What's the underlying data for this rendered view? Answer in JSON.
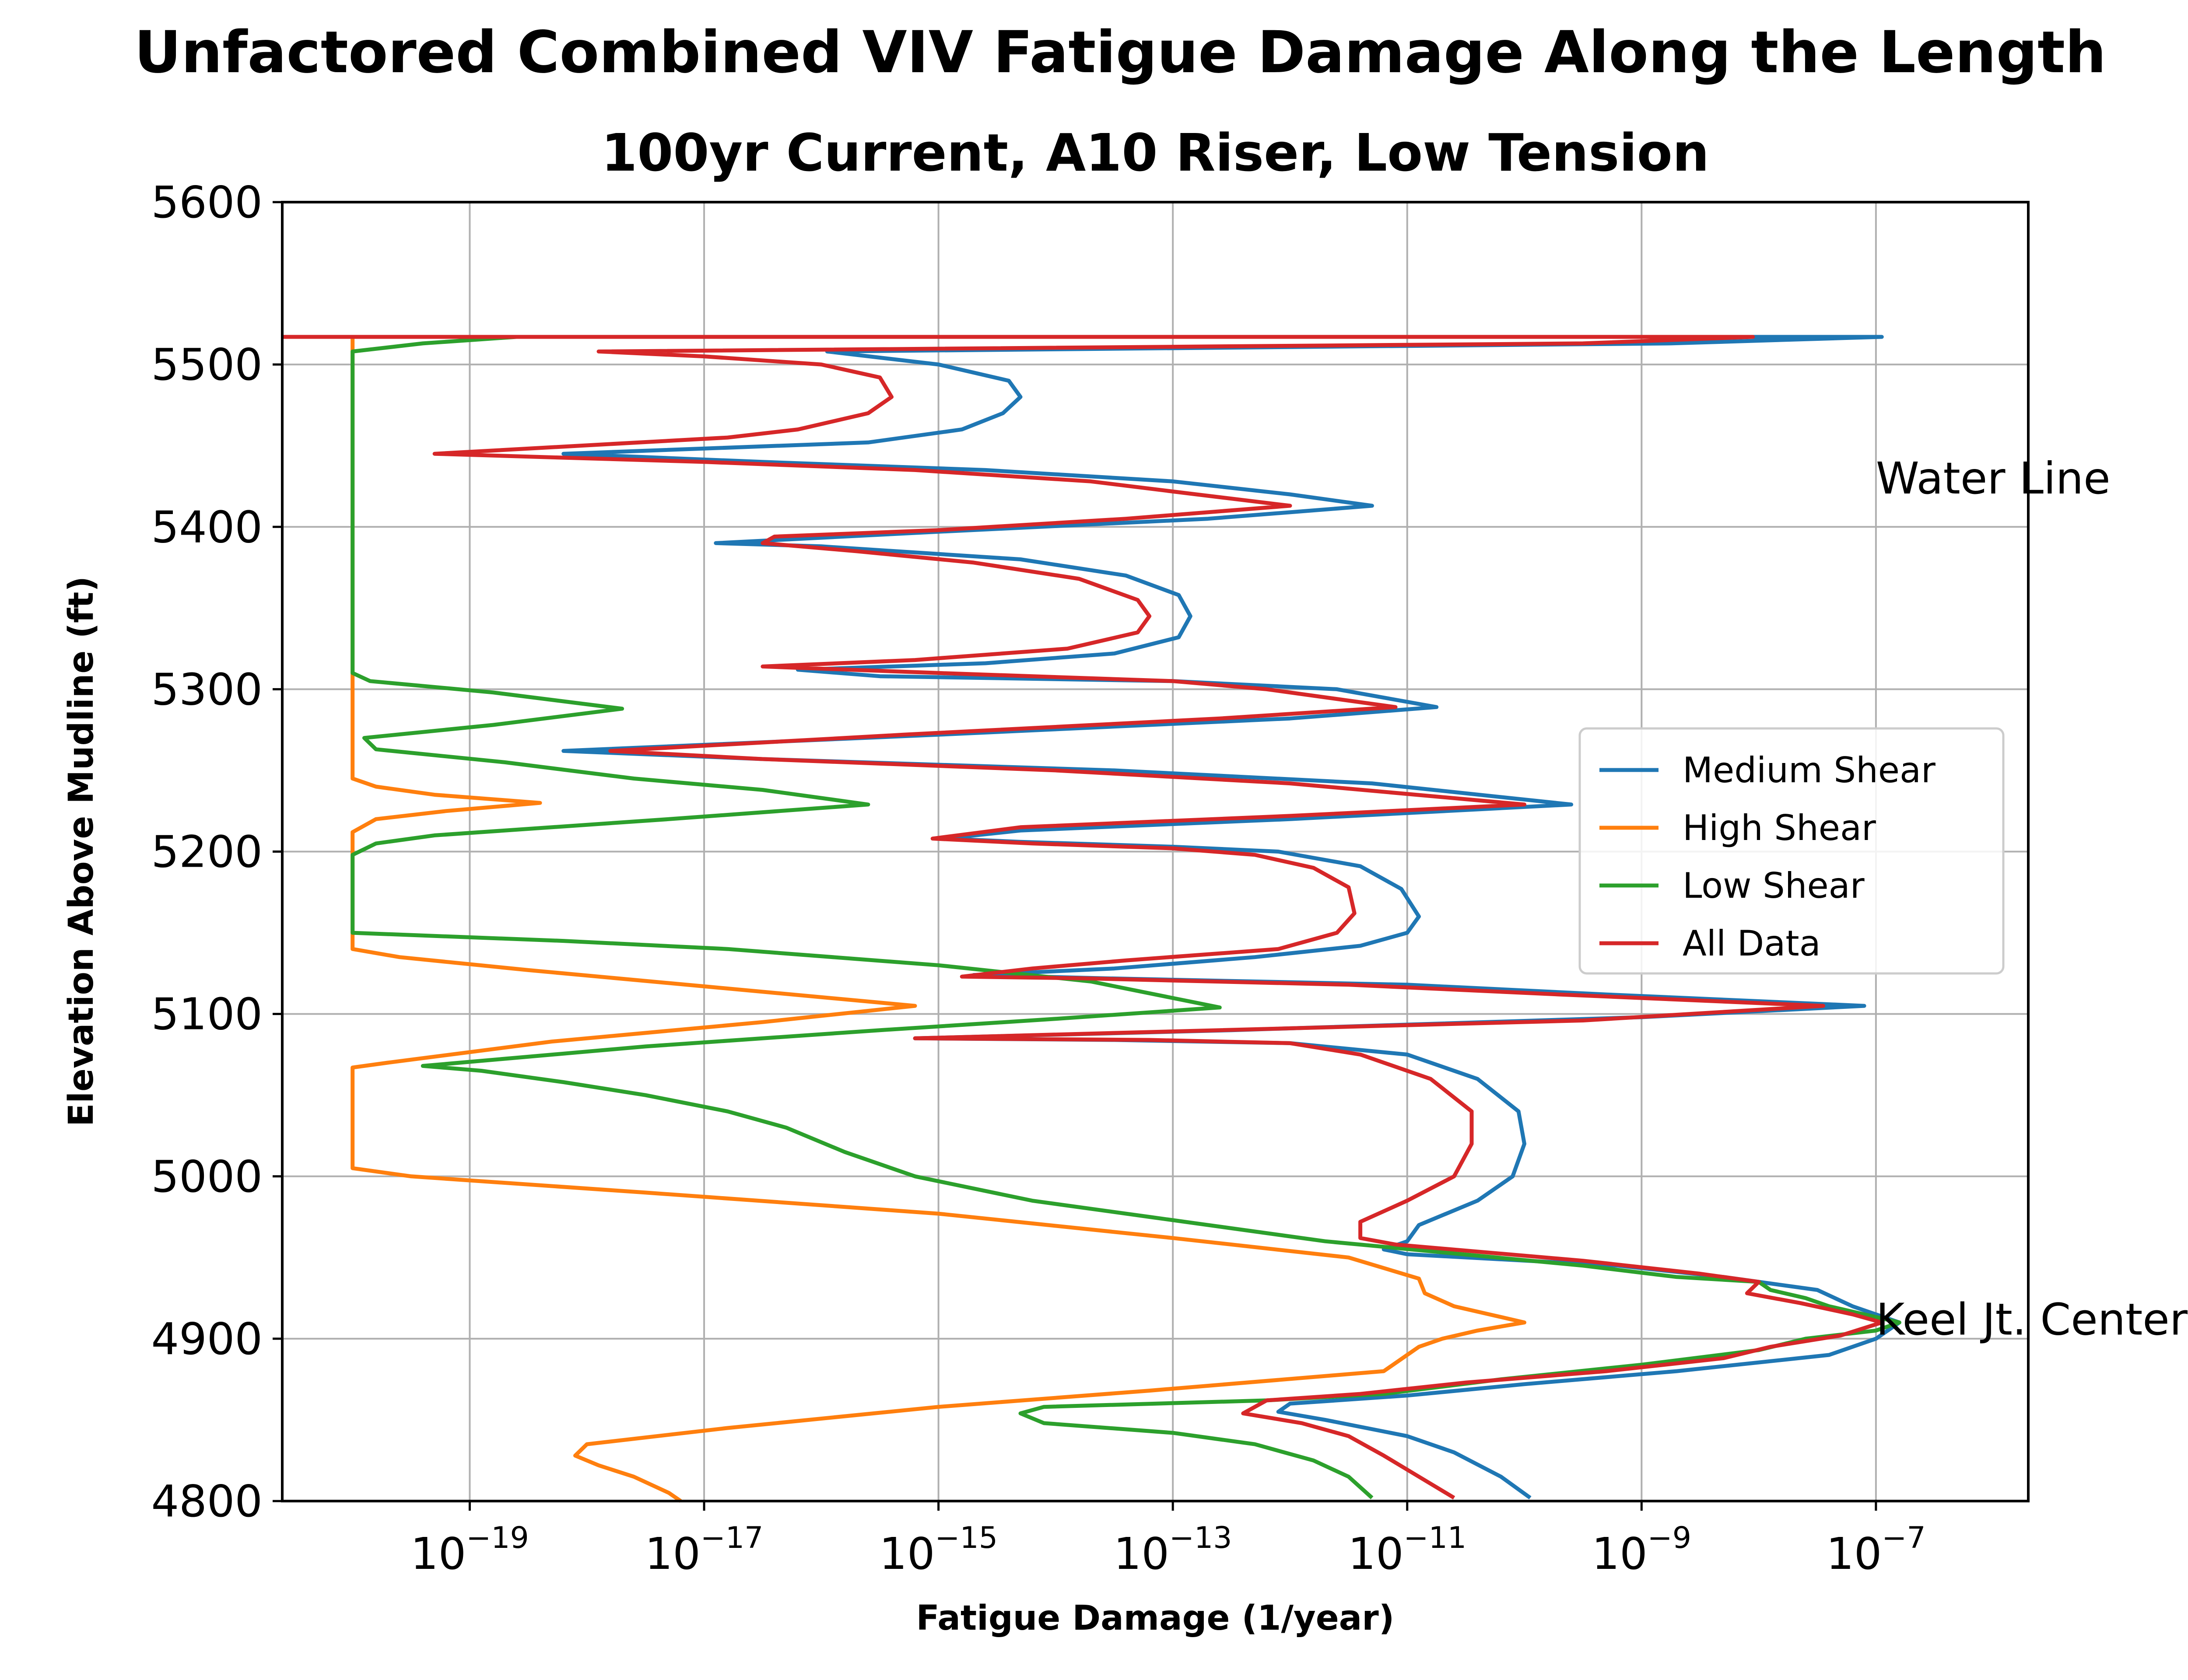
{
  "chart_data": {
    "type": "line",
    "title": "Unfactored Combined VIV Fatigue Damage Along the Length",
    "subtitle": "100yr Current, A10 Riser, Low Tension",
    "xlabel": "Fatigue Damage (1/year)",
    "ylabel": "Elevation Above Mudline (ft)",
    "x_scale": "log",
    "xlim_exp": [
      -20.6,
      -5.7
    ],
    "xlim": [
      2.5e-21,
      2e-06
    ],
    "ylim": [
      4800,
      5600
    ],
    "x_ticks": [
      {
        "exp": -19,
        "base": "10",
        "power": "−19"
      },
      {
        "exp": -17,
        "base": "10",
        "power": "−17"
      },
      {
        "exp": -15,
        "base": "10",
        "power": "−15"
      },
      {
        "exp": -13,
        "base": "10",
        "power": "−13"
      },
      {
        "exp": -11,
        "base": "10",
        "power": "−11"
      },
      {
        "exp": -9,
        "base": "10",
        "power": "−9"
      },
      {
        "exp": -7,
        "base": "10",
        "power": "−7"
      }
    ],
    "y_ticks": [
      "4800",
      "4900",
      "5000",
      "5100",
      "5200",
      "5300",
      "5400",
      "5500",
      "5600"
    ],
    "grid": true,
    "legend_position": "center-right",
    "annotations": [
      {
        "text": "Water Line",
        "x_exp": -7.0,
        "y": 5430
      },
      {
        "text": "Keel Jt. Center",
        "x_exp": -7.0,
        "y": 4912
      }
    ],
    "series": [
      {
        "name": "Medium Shear",
        "color": "#1f77b4",
        "points": [
          [
            -20.6,
            5517
          ],
          [
            -6.95,
            5517
          ],
          [
            -8.75,
            5513
          ],
          [
            -15.95,
            5508
          ],
          [
            -15.0,
            5500
          ],
          [
            -14.4,
            5490
          ],
          [
            -14.3,
            5480
          ],
          [
            -14.45,
            5470
          ],
          [
            -14.8,
            5460
          ],
          [
            -15.6,
            5452
          ],
          [
            -18.2,
            5445
          ],
          [
            -16.5,
            5440
          ],
          [
            -14.6,
            5435
          ],
          [
            -13.0,
            5428
          ],
          [
            -12.0,
            5420
          ],
          [
            -11.3,
            5413
          ],
          [
            -12.7,
            5405
          ],
          [
            -15.0,
            5397
          ],
          [
            -16.9,
            5390
          ],
          [
            -16.0,
            5388
          ],
          [
            -14.3,
            5380
          ],
          [
            -13.4,
            5370
          ],
          [
            -12.95,
            5358
          ],
          [
            -12.85,
            5345
          ],
          [
            -12.95,
            5332
          ],
          [
            -13.5,
            5322
          ],
          [
            -14.6,
            5316
          ],
          [
            -16.2,
            5312
          ],
          [
            -15.5,
            5308
          ],
          [
            -13.0,
            5305
          ],
          [
            -11.6,
            5300
          ],
          [
            -10.75,
            5289
          ],
          [
            -12.0,
            5282
          ],
          [
            -15.0,
            5272
          ],
          [
            -18.2,
            5262
          ],
          [
            -16.5,
            5257
          ],
          [
            -13.5,
            5250
          ],
          [
            -11.3,
            5242
          ],
          [
            -9.6,
            5229
          ],
          [
            -12.0,
            5220
          ],
          [
            -14.3,
            5213
          ],
          [
            -14.95,
            5208
          ],
          [
            -14.3,
            5206
          ],
          [
            -13.0,
            5203
          ],
          [
            -12.1,
            5200
          ],
          [
            -11.4,
            5191
          ],
          [
            -11.05,
            5177
          ],
          [
            -10.9,
            5160
          ],
          [
            -11.0,
            5150
          ],
          [
            -11.4,
            5142
          ],
          [
            -12.3,
            5135
          ],
          [
            -13.5,
            5128
          ],
          [
            -14.7,
            5124
          ],
          [
            -13.6,
            5122
          ],
          [
            -11.0,
            5118
          ],
          [
            -9.3,
            5112
          ],
          [
            -7.1,
            5105
          ],
          [
            -9.0,
            5098
          ],
          [
            -12.5,
            5090
          ],
          [
            -15.2,
            5085
          ],
          [
            -13.5,
            5084
          ],
          [
            -12.0,
            5082
          ],
          [
            -11.0,
            5075
          ],
          [
            -10.4,
            5060
          ],
          [
            -10.05,
            5040
          ],
          [
            -10.0,
            5020
          ],
          [
            -10.1,
            5000
          ],
          [
            -10.4,
            4985
          ],
          [
            -10.9,
            4970
          ],
          [
            -11.0,
            4960
          ],
          [
            -11.2,
            4955
          ],
          [
            -11.0,
            4952
          ],
          [
            -9.2,
            4945
          ],
          [
            -8.3,
            4938
          ],
          [
            -7.5,
            4930
          ],
          [
            -7.2,
            4920
          ],
          [
            -6.8,
            4910
          ],
          [
            -7.0,
            4900
          ],
          [
            -7.4,
            4890
          ],
          [
            -8.7,
            4880
          ],
          [
            -10.0,
            4872
          ],
          [
            -11.0,
            4865
          ],
          [
            -12.0,
            4860
          ],
          [
            -12.1,
            4855
          ],
          [
            -11.7,
            4850
          ],
          [
            -11.0,
            4840
          ],
          [
            -10.6,
            4830
          ],
          [
            -10.2,
            4815
          ],
          [
            -9.95,
            4802
          ]
        ]
      },
      {
        "name": "High Shear",
        "color": "#ff7f0e",
        "points": [
          [
            -20.6,
            5517
          ],
          [
            -20.0,
            5517
          ],
          [
            -20.0,
            5510
          ],
          [
            -20.0,
            5400
          ],
          [
            -20.0,
            5245
          ],
          [
            -19.8,
            5240
          ],
          [
            -19.3,
            5235
          ],
          [
            -18.4,
            5230
          ],
          [
            -19.2,
            5225
          ],
          [
            -19.8,
            5220
          ],
          [
            -20.0,
            5212
          ],
          [
            -20.0,
            5140
          ],
          [
            -19.6,
            5135
          ],
          [
            -18.5,
            5127
          ],
          [
            -17.0,
            5117
          ],
          [
            -15.2,
            5105
          ],
          [
            -16.5,
            5095
          ],
          [
            -18.3,
            5083
          ],
          [
            -19.7,
            5070
          ],
          [
            -20.0,
            5067
          ],
          [
            -20.0,
            5005
          ],
          [
            -19.5,
            5000
          ],
          [
            -17.5,
            4990
          ],
          [
            -15.0,
            4977
          ],
          [
            -13.0,
            4962
          ],
          [
            -11.5,
            4950
          ],
          [
            -10.9,
            4937
          ],
          [
            -10.85,
            4928
          ],
          [
            -10.6,
            4920
          ],
          [
            -10.3,
            4915
          ],
          [
            -10.0,
            4910
          ],
          [
            -10.4,
            4905
          ],
          [
            -10.7,
            4900
          ],
          [
            -10.9,
            4895
          ],
          [
            -11.0,
            4890
          ],
          [
            -11.2,
            4880
          ],
          [
            -13.2,
            4868
          ],
          [
            -15.0,
            4858
          ],
          [
            -16.8,
            4845
          ],
          [
            -18.0,
            4835
          ],
          [
            -18.1,
            4828
          ],
          [
            -17.9,
            4822
          ],
          [
            -17.6,
            4815
          ],
          [
            -17.3,
            4805
          ],
          [
            -17.2,
            4800
          ]
        ]
      },
      {
        "name": "Low Shear",
        "color": "#2ca02c",
        "points": [
          [
            -20.6,
            5517
          ],
          [
            -18.6,
            5517
          ],
          [
            -19.4,
            5513
          ],
          [
            -20.0,
            5508
          ],
          [
            -20.0,
            5400
          ],
          [
            -20.0,
            5310
          ],
          [
            -19.85,
            5305
          ],
          [
            -18.8,
            5298
          ],
          [
            -17.7,
            5288
          ],
          [
            -18.8,
            5278
          ],
          [
            -19.9,
            5270
          ],
          [
            -19.8,
            5263
          ],
          [
            -18.7,
            5255
          ],
          [
            -17.6,
            5245
          ],
          [
            -16.5,
            5238
          ],
          [
            -15.6,
            5229
          ],
          [
            -17.3,
            5220
          ],
          [
            -19.3,
            5210
          ],
          [
            -19.8,
            5205
          ],
          [
            -20.0,
            5198
          ],
          [
            -20.0,
            5150
          ],
          [
            -18.2,
            5145
          ],
          [
            -16.8,
            5140
          ],
          [
            -15.0,
            5130
          ],
          [
            -13.7,
            5120
          ],
          [
            -12.6,
            5104
          ],
          [
            -14.0,
            5097
          ],
          [
            -15.5,
            5090
          ],
          [
            -17.5,
            5080
          ],
          [
            -19.4,
            5068
          ],
          [
            -18.9,
            5065
          ],
          [
            -18.2,
            5058
          ],
          [
            -17.5,
            5050
          ],
          [
            -16.8,
            5040
          ],
          [
            -16.3,
            5030
          ],
          [
            -15.8,
            5015
          ],
          [
            -15.2,
            5000
          ],
          [
            -14.2,
            4985
          ],
          [
            -13.2,
            4975
          ],
          [
            -11.7,
            4960
          ],
          [
            -9.5,
            4945
          ],
          [
            -8.7,
            4938
          ],
          [
            -8.0,
            4935
          ],
          [
            -7.9,
            4930
          ],
          [
            -7.6,
            4925
          ],
          [
            -7.4,
            4920
          ],
          [
            -6.8,
            4910
          ],
          [
            -7.0,
            4905
          ],
          [
            -7.6,
            4900
          ],
          [
            -8.0,
            4893
          ],
          [
            -9.0,
            4884
          ],
          [
            -10.2,
            4875
          ],
          [
            -11.2,
            4866
          ],
          [
            -12.2,
            4862
          ],
          [
            -14.1,
            4858
          ],
          [
            -14.3,
            4854
          ],
          [
            -14.1,
            4848
          ],
          [
            -13.0,
            4842
          ],
          [
            -12.3,
            4835
          ],
          [
            -11.8,
            4825
          ],
          [
            -11.5,
            4815
          ],
          [
            -11.3,
            4802
          ]
        ]
      },
      {
        "name": "All Data",
        "color": "#d62728",
        "points": [
          [
            -20.6,
            5517
          ],
          [
            -8.05,
            5517
          ],
          [
            -9.5,
            5513
          ],
          [
            -17.9,
            5508
          ],
          [
            -17.0,
            5505
          ],
          [
            -16.0,
            5500
          ],
          [
            -15.5,
            5492
          ],
          [
            -15.4,
            5480
          ],
          [
            -15.6,
            5470
          ],
          [
            -16.2,
            5460
          ],
          [
            -16.8,
            5455
          ],
          [
            -19.3,
            5445
          ],
          [
            -17.0,
            5440
          ],
          [
            -15.2,
            5435
          ],
          [
            -13.7,
            5428
          ],
          [
            -12.8,
            5420
          ],
          [
            -12.0,
            5413
          ],
          [
            -13.4,
            5405
          ],
          [
            -15.0,
            5398
          ],
          [
            -16.4,
            5394
          ],
          [
            -16.5,
            5390
          ],
          [
            -15.7,
            5385
          ],
          [
            -14.7,
            5378
          ],
          [
            -13.8,
            5368
          ],
          [
            -13.3,
            5355
          ],
          [
            -13.2,
            5345
          ],
          [
            -13.3,
            5335
          ],
          [
            -13.9,
            5325
          ],
          [
            -15.2,
            5318
          ],
          [
            -16.5,
            5314
          ],
          [
            -15.0,
            5310
          ],
          [
            -13.0,
            5305
          ],
          [
            -12.2,
            5300
          ],
          [
            -11.1,
            5289
          ],
          [
            -12.6,
            5282
          ],
          [
            -15.3,
            5272
          ],
          [
            -17.8,
            5262
          ],
          [
            -16.5,
            5257
          ],
          [
            -14.0,
            5250
          ],
          [
            -12.0,
            5242
          ],
          [
            -10.0,
            5229
          ],
          [
            -12.0,
            5222
          ],
          [
            -14.3,
            5215
          ],
          [
            -15.05,
            5208
          ],
          [
            -14.2,
            5205
          ],
          [
            -13.0,
            5202
          ],
          [
            -12.3,
            5198
          ],
          [
            -11.8,
            5190
          ],
          [
            -11.5,
            5178
          ],
          [
            -11.45,
            5162
          ],
          [
            -11.6,
            5150
          ],
          [
            -12.1,
            5140
          ],
          [
            -13.4,
            5133
          ],
          [
            -14.2,
            5128
          ],
          [
            -14.8,
            5123
          ],
          [
            -13.8,
            5122
          ],
          [
            -11.5,
            5118
          ],
          [
            -9.7,
            5112
          ],
          [
            -7.45,
            5105
          ],
          [
            -9.5,
            5096
          ],
          [
            -12.6,
            5090
          ],
          [
            -15.2,
            5085
          ],
          [
            -13.2,
            5084
          ],
          [
            -12.0,
            5082
          ],
          [
            -11.4,
            5075
          ],
          [
            -10.8,
            5060
          ],
          [
            -10.45,
            5040
          ],
          [
            -10.45,
            5020
          ],
          [
            -10.6,
            5000
          ],
          [
            -11.0,
            4985
          ],
          [
            -11.4,
            4972
          ],
          [
            -11.4,
            4962
          ],
          [
            -11.1,
            4958
          ],
          [
            -9.5,
            4948
          ],
          [
            -8.5,
            4940
          ],
          [
            -8.0,
            4935
          ],
          [
            -8.1,
            4928
          ],
          [
            -7.65,
            4922
          ],
          [
            -7.2,
            4915
          ],
          [
            -6.95,
            4910
          ],
          [
            -7.3,
            4902
          ],
          [
            -7.9,
            4895
          ],
          [
            -8.3,
            4888
          ],
          [
            -9.3,
            4880
          ],
          [
            -10.5,
            4873
          ],
          [
            -11.4,
            4866
          ],
          [
            -12.2,
            4862
          ],
          [
            -12.4,
            4854
          ],
          [
            -11.9,
            4848
          ],
          [
            -11.5,
            4840
          ],
          [
            -11.2,
            4828
          ],
          [
            -10.9,
            4815
          ],
          [
            -10.6,
            4802
          ]
        ]
      }
    ]
  }
}
